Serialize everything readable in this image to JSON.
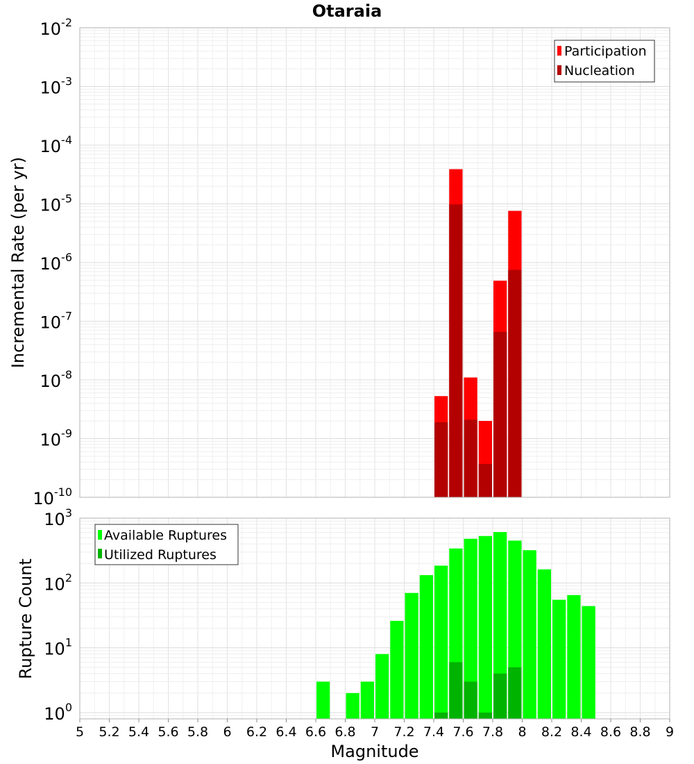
{
  "title": "Otaraia",
  "colors": {
    "participation": "#ff0000",
    "nucleation": "#b30000",
    "available": "#00ff00",
    "utilized": "#00b300",
    "grid": "#e6e6e6",
    "frame": "#b0b0b0"
  },
  "chart_data": [
    {
      "type": "bar",
      "title": "Otaraia",
      "xlabel": "",
      "ylabel": "Incremental Rate (per yr)",
      "yscale": "log",
      "xlim": [
        5,
        9
      ],
      "ylim": [
        1e-10,
        0.01
      ],
      "bin_width": 0.1,
      "grid": true,
      "legend_position": "top-right",
      "y_ticks": [
        {
          "base": "10",
          "exp": "-10"
        },
        {
          "base": "10",
          "exp": "-9"
        },
        {
          "base": "10",
          "exp": "-8"
        },
        {
          "base": "10",
          "exp": "-7"
        },
        {
          "base": "10",
          "exp": "-6"
        },
        {
          "base": "10",
          "exp": "-5"
        },
        {
          "base": "10",
          "exp": "-4"
        },
        {
          "base": "10",
          "exp": "-3"
        },
        {
          "base": "10",
          "exp": "-2"
        }
      ],
      "series": [
        {
          "name": "Participation",
          "points": [
            {
              "x": 7.45,
              "y": 5.3e-09
            },
            {
              "x": 7.55,
              "y": 3.9e-05
            },
            {
              "x": 7.65,
              "y": 1.1e-08
            },
            {
              "x": 7.75,
              "y": 2e-09
            },
            {
              "x": 7.85,
              "y": 4.9e-07
            },
            {
              "x": 7.95,
              "y": 7.6e-06
            }
          ]
        },
        {
          "name": "Nucleation",
          "points": [
            {
              "x": 7.45,
              "y": 1.9e-09
            },
            {
              "x": 7.55,
              "y": 9.8e-06
            },
            {
              "x": 7.65,
              "y": 2.1e-09
            },
            {
              "x": 7.75,
              "y": 3.7e-10
            },
            {
              "x": 7.85,
              "y": 6.6e-08
            },
            {
              "x": 7.95,
              "y": 7.5e-07
            }
          ]
        }
      ]
    },
    {
      "type": "bar",
      "title": "",
      "xlabel": "Magnitude",
      "ylabel": "Rupture Count",
      "yscale": "log",
      "xlim": [
        5,
        9
      ],
      "ylim": [
        0.8,
        1000
      ],
      "bin_width": 0.1,
      "grid": true,
      "legend_position": "top-left",
      "x_ticks": [
        "5",
        "5.2",
        "5.4",
        "5.6",
        "5.8",
        "6",
        "6.2",
        "6.4",
        "6.6",
        "6.8",
        "7",
        "7.2",
        "7.4",
        "7.6",
        "7.8",
        "8",
        "8.2",
        "8.4",
        "8.6",
        "8.8",
        "9"
      ],
      "y_ticks": [
        {
          "value": 1,
          "base": "10",
          "exp": "0"
        },
        {
          "value": 10,
          "base": "10",
          "exp": "1"
        },
        {
          "value": 100,
          "base": "10",
          "exp": "2"
        },
        {
          "value": 1000,
          "base": "10",
          "exp": "3"
        }
      ],
      "series": [
        {
          "name": "Available Ruptures",
          "points": [
            {
              "x": 6.65,
              "y": 3
            },
            {
              "x": 6.85,
              "y": 2
            },
            {
              "x": 6.95,
              "y": 3
            },
            {
              "x": 7.05,
              "y": 8
            },
            {
              "x": 7.15,
              "y": 26
            },
            {
              "x": 7.25,
              "y": 70
            },
            {
              "x": 7.35,
              "y": 132
            },
            {
              "x": 7.45,
              "y": 185
            },
            {
              "x": 7.55,
              "y": 340
            },
            {
              "x": 7.65,
              "y": 480
            },
            {
              "x": 7.75,
              "y": 530
            },
            {
              "x": 7.85,
              "y": 610
            },
            {
              "x": 7.95,
              "y": 450
            },
            {
              "x": 8.05,
              "y": 320
            },
            {
              "x": 8.15,
              "y": 162
            },
            {
              "x": 8.25,
              "y": 55
            },
            {
              "x": 8.35,
              "y": 65
            },
            {
              "x": 8.45,
              "y": 44
            }
          ]
        },
        {
          "name": "Utilized Ruptures",
          "points": [
            {
              "x": 7.45,
              "y": 1
            },
            {
              "x": 7.55,
              "y": 6
            },
            {
              "x": 7.65,
              "y": 3
            },
            {
              "x": 7.75,
              "y": 1
            },
            {
              "x": 7.85,
              "y": 4
            },
            {
              "x": 7.95,
              "y": 5
            }
          ]
        }
      ]
    }
  ]
}
